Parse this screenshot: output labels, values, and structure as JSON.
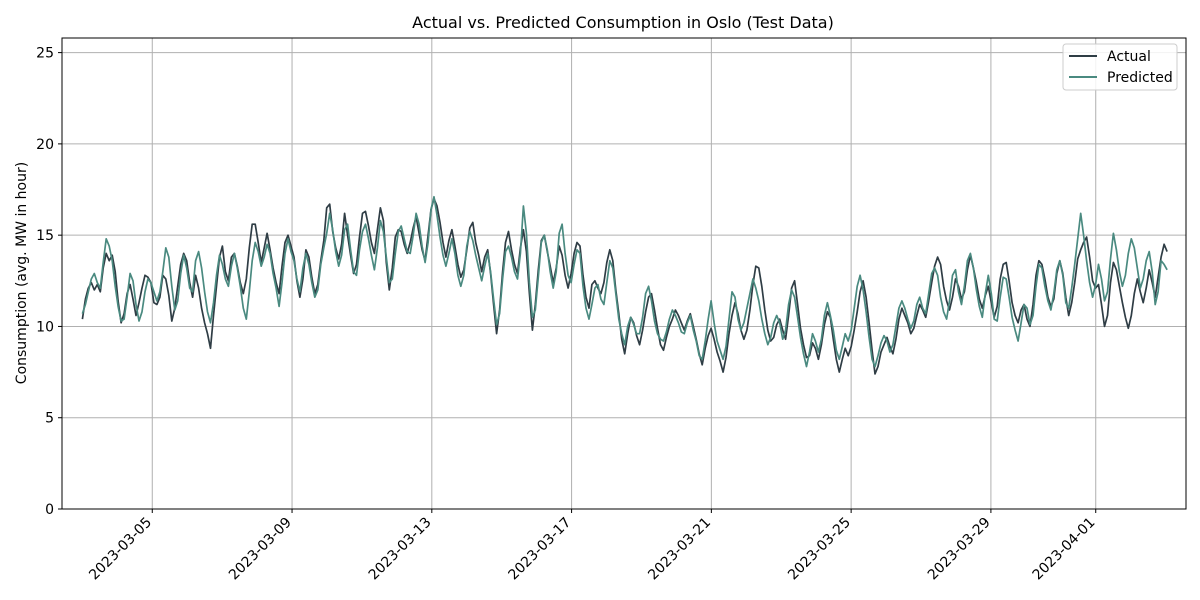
{
  "chart_data": {
    "type": "line",
    "title": "Actual vs. Predicted Consumption in Oslo (Test Data)",
    "xlabel": "",
    "ylabel": "Consumption (avg. MW in hour)",
    "x_range": [
      "2023-03-02T10:00",
      "2023-04-03T14:00"
    ],
    "ylim": [
      0,
      25.8
    ],
    "yticks": [
      0,
      5,
      10,
      15,
      20,
      25
    ],
    "xticks": [
      "2023-03-05",
      "2023-03-09",
      "2023-03-13",
      "2023-03-17",
      "2023-03-21",
      "2023-03-25",
      "2023-03-29",
      "2023-04-01"
    ],
    "grid": true,
    "legend_position": "top-right",
    "x_start": "2023-03-03T00:00",
    "x_end": "2023-04-03T01:00",
    "sampling": "12 samples per day (every 2 hours)",
    "series": [
      {
        "name": "Actual",
        "color": "#2f3d45",
        "values": [
          10.4,
          11.5,
          12.1,
          12.4,
          12.0,
          12.3,
          11.9,
          13.2,
          14.0,
          13.6,
          13.9,
          13.0,
          11.4,
          10.2,
          10.7,
          11.8,
          12.3,
          11.5,
          10.6,
          11.3,
          12.1,
          12.8,
          12.7,
          12.4,
          11.3,
          11.2,
          11.6,
          12.8,
          12.6,
          11.7,
          10.3,
          11.0,
          12.2,
          13.4,
          14.0,
          13.6,
          12.4,
          11.6,
          12.8,
          12.1,
          11.0,
          10.2,
          9.6,
          8.8,
          10.6,
          12.2,
          13.8,
          14.4,
          13.0,
          12.5,
          13.8,
          14.0,
          13.3,
          12.4,
          11.8,
          12.6,
          14.3,
          15.6,
          15.6,
          14.6,
          13.5,
          14.3,
          15.1,
          14.2,
          13.2,
          12.4,
          11.8,
          13.3,
          14.6,
          15.0,
          14.4,
          13.8,
          12.5,
          11.6,
          12.6,
          14.2,
          13.8,
          12.7,
          11.8,
          12.3,
          13.6,
          14.7,
          16.5,
          16.7,
          15.2,
          14.3,
          13.7,
          14.5,
          16.2,
          15.0,
          13.9,
          12.9,
          13.4,
          14.9,
          16.2,
          16.3,
          15.5,
          14.6,
          14.0,
          15.3,
          16.5,
          15.8,
          13.5,
          12.0,
          13.2,
          14.9,
          15.3,
          15.2,
          14.5,
          14.0,
          14.6,
          15.4,
          16.0,
          15.1,
          14.2,
          13.6,
          15.0,
          16.4,
          17.0,
          16.6,
          15.7,
          14.6,
          13.8,
          14.7,
          15.3,
          14.4,
          13.4,
          12.7,
          13.1,
          14.2,
          15.4,
          15.7,
          14.6,
          13.9,
          13.0,
          13.8,
          14.2,
          12.9,
          11.2,
          9.6,
          10.9,
          13.0,
          14.6,
          15.2,
          14.2,
          13.4,
          12.9,
          14.3,
          15.3,
          14.1,
          11.8,
          9.8,
          11.2,
          13.1,
          14.7,
          15.0,
          14.1,
          13.3,
          12.4,
          13.2,
          14.4,
          13.9,
          12.8,
          12.1,
          12.9,
          14.0,
          14.6,
          14.4,
          12.8,
          11.6,
          11.0,
          12.3,
          12.5,
          12.1,
          11.8,
          12.4,
          13.5,
          14.2,
          13.6,
          12.0,
          10.7,
          9.3,
          8.5,
          9.6,
          10.5,
          10.2,
          9.5,
          9.0,
          9.8,
          10.8,
          11.6,
          11.8,
          10.9,
          9.9,
          9.0,
          8.7,
          9.4,
          10.0,
          10.4,
          10.9,
          10.6,
          10.2,
          9.8,
          10.3,
          10.7,
          10.0,
          9.3,
          8.5,
          7.9,
          8.8,
          9.5,
          9.9,
          9.3,
          8.6,
          8.1,
          7.5,
          8.3,
          9.6,
          10.6,
          11.3,
          10.7,
          9.8,
          9.3,
          9.8,
          10.9,
          12.3,
          13.3,
          13.2,
          12.2,
          10.9,
          9.8,
          9.2,
          9.4,
          10.1,
          10.4,
          9.8,
          9.3,
          10.6,
          12.1,
          12.5,
          11.2,
          9.9,
          9.0,
          8.3,
          8.4,
          9.1,
          8.8,
          8.2,
          9.0,
          10.1,
          10.8,
          10.5,
          9.3,
          8.2,
          7.5,
          8.2,
          8.8,
          8.4,
          8.9,
          9.8,
          10.8,
          11.9,
          12.5,
          11.6,
          10.2,
          8.7,
          7.4,
          7.8,
          8.6,
          9.0,
          9.4,
          8.9,
          8.5,
          9.3,
          10.4,
          11.0,
          10.6,
          10.2,
          9.6,
          9.9,
          10.6,
          11.2,
          10.9,
          10.5,
          11.4,
          12.4,
          13.3,
          13.8,
          13.4,
          12.2,
          11.4,
          10.9,
          11.6,
          12.6,
          12.2,
          11.5,
          11.9,
          13.1,
          13.9,
          13.2,
          12.4,
          11.5,
          11.0,
          11.7,
          12.2,
          11.3,
          10.5,
          11.1,
          12.6,
          13.4,
          13.5,
          12.5,
          11.3,
          10.6,
          10.2,
          10.9,
          11.2,
          10.4,
          10.0,
          11.2,
          12.8,
          13.6,
          13.4,
          12.6,
          11.6,
          11.1,
          11.5,
          12.9,
          13.6,
          12.9,
          11.6,
          10.6,
          11.3,
          12.4,
          13.7,
          14.2,
          14.6,
          14.9,
          13.8,
          12.5,
          12.1,
          12.3,
          11.2,
          10.0,
          10.6,
          12.4,
          13.5,
          13.1,
          12.2,
          11.3,
          10.5,
          9.9,
          10.6,
          11.8,
          12.6,
          11.9,
          11.3,
          12.1,
          13.1,
          12.4,
          11.6,
          12.7,
          13.8,
          14.5,
          14.1
        ]
      },
      {
        "name": "Predicted",
        "color": "#4a8a80",
        "values": [
          10.7,
          11.2,
          11.9,
          12.6,
          12.9,
          12.4,
          12.1,
          13.5,
          14.8,
          14.4,
          13.6,
          12.2,
          11.1,
          10.3,
          10.4,
          11.6,
          12.9,
          12.5,
          11.2,
          10.3,
          10.8,
          11.9,
          12.6,
          12.4,
          11.9,
          11.4,
          11.9,
          13.0,
          14.3,
          13.8,
          12.2,
          10.9,
          11.4,
          12.9,
          13.9,
          13.2,
          12.1,
          11.9,
          13.6,
          14.1,
          13.2,
          11.9,
          10.8,
          10.2,
          11.3,
          12.8,
          13.9,
          13.4,
          12.6,
          12.2,
          13.3,
          14.0,
          13.2,
          12.2,
          11.0,
          10.4,
          11.9,
          13.6,
          14.6,
          14.1,
          13.3,
          13.8,
          14.5,
          14.0,
          12.9,
          12.1,
          11.1,
          12.4,
          14.0,
          14.8,
          14.1,
          13.6,
          12.6,
          11.9,
          13.2,
          14.0,
          13.4,
          12.4,
          11.6,
          12.0,
          13.4,
          14.3,
          15.1,
          16.2,
          15.3,
          14.1,
          13.3,
          13.9,
          15.3,
          15.6,
          14.2,
          13.0,
          12.8,
          14.2,
          15.2,
          15.6,
          14.8,
          13.9,
          13.1,
          14.3,
          15.8,
          15.2,
          13.8,
          12.4,
          12.6,
          14.0,
          15.2,
          15.5,
          14.8,
          14.1,
          14.0,
          15.0,
          16.2,
          15.6,
          14.4,
          13.5,
          14.6,
          16.4,
          17.1,
          16.1,
          14.9,
          13.9,
          13.3,
          14.0,
          14.8,
          14.0,
          12.8,
          12.2,
          12.8,
          14.4,
          15.2,
          14.7,
          13.9,
          13.2,
          12.5,
          13.3,
          14.0,
          13.0,
          11.5,
          10.1,
          10.7,
          12.6,
          14.1,
          14.4,
          13.8,
          13.0,
          12.6,
          14.0,
          16.6,
          15.1,
          12.4,
          10.5,
          10.9,
          12.7,
          14.6,
          15.0,
          14.2,
          13.0,
          12.1,
          13.0,
          15.1,
          15.6,
          14.0,
          12.8,
          12.4,
          13.4,
          14.2,
          14.0,
          12.2,
          11.0,
          10.4,
          11.2,
          12.1,
          12.3,
          11.5,
          11.2,
          12.4,
          13.6,
          13.2,
          11.8,
          10.4,
          9.6,
          9.0,
          10.0,
          10.5,
          10.1,
          9.6,
          9.6,
          10.5,
          11.8,
          12.2,
          11.4,
          10.3,
          9.6,
          9.3,
          9.2,
          9.7,
          10.4,
          10.9,
          10.6,
          10.2,
          9.7,
          9.6,
          10.2,
          10.6,
          9.8,
          9.2,
          8.4,
          8.2,
          9.2,
          10.4,
          11.4,
          10.2,
          9.2,
          8.7,
          8.2,
          8.9,
          10.4,
          11.9,
          11.6,
          10.4,
          9.8,
          10.2,
          11.0,
          11.8,
          12.6,
          12.1,
          11.4,
          10.4,
          9.6,
          9.0,
          9.4,
          10.2,
          10.6,
          10.2,
          9.3,
          9.8,
          11.2,
          12.0,
          11.6,
          10.5,
          9.4,
          8.5,
          7.8,
          8.6,
          9.6,
          9.2,
          8.6,
          9.3,
          10.6,
          11.3,
          10.6,
          9.8,
          8.7,
          8.2,
          8.9,
          9.6,
          9.2,
          9.8,
          11.0,
          12.2,
          12.8,
          12.0,
          10.8,
          9.4,
          8.2,
          7.8,
          8.4,
          9.1,
          9.5,
          9.2,
          8.6,
          9.0,
          10.0,
          11.0,
          11.4,
          11.0,
          10.4,
          9.9,
          10.3,
          11.2,
          11.6,
          11.0,
          10.7,
          11.8,
          12.9,
          13.2,
          12.8,
          11.6,
          10.8,
          10.4,
          11.4,
          12.8,
          13.1,
          11.9,
          11.2,
          12.2,
          13.6,
          14.0,
          13.2,
          12.0,
          11.1,
          10.5,
          11.8,
          12.8,
          11.8,
          10.4,
          10.3,
          11.6,
          12.7,
          12.6,
          11.6,
          10.5,
          9.8,
          9.2,
          10.2,
          11.2,
          11.0,
          10.1,
          10.6,
          12.2,
          13.4,
          13.2,
          12.2,
          11.4,
          10.9,
          11.8,
          13.1,
          13.6,
          12.8,
          11.3,
          11.0,
          12.1,
          13.4,
          14.8,
          16.2,
          15.0,
          13.6,
          12.4,
          11.6,
          12.3,
          13.4,
          12.6,
          11.4,
          11.9,
          13.7,
          15.1,
          14.2,
          13.0,
          12.2,
          12.8,
          14.0,
          14.8,
          14.3,
          13.2,
          12.1,
          12.6,
          13.6,
          14.1,
          13.0,
          11.2,
          11.9,
          13.6,
          13.4,
          13.1
        ]
      }
    ]
  }
}
